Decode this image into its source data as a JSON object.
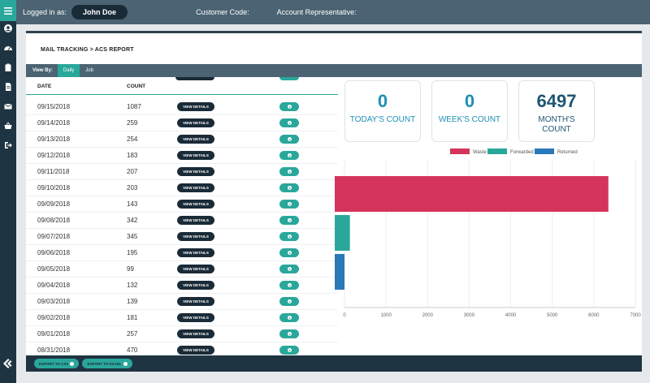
{
  "header": {
    "logged_in_label": "Logged in as:",
    "user_name": "John Doe",
    "customer_code_label": "Customer Code:",
    "account_rep_label": "Account Representative:"
  },
  "sidebar": {
    "icons": [
      "menu-icon",
      "user-icon",
      "dashboard-icon",
      "clipboard-icon",
      "document-icon",
      "mail-icon",
      "basket-icon",
      "logout-icon",
      "logo-icon"
    ]
  },
  "breadcrumb": "MAIL TRACKING > ACS REPORT",
  "view_by": {
    "label": "View By:",
    "tabs": [
      {
        "label": "Daily",
        "active": true
      },
      {
        "label": "Job",
        "active": false
      }
    ]
  },
  "table": {
    "headers": {
      "date": "DATE",
      "count": "COUNT"
    },
    "view_details_label": "VIEW DETAILS",
    "rows": [
      {
        "date": "09/15/2018",
        "count": "1087"
      },
      {
        "date": "09/14/2018",
        "count": "259"
      },
      {
        "date": "09/13/2018",
        "count": "254"
      },
      {
        "date": "09/12/2018",
        "count": "183"
      },
      {
        "date": "09/11/2018",
        "count": "207"
      },
      {
        "date": "09/10/2018",
        "count": "203"
      },
      {
        "date": "09/09/2018",
        "count": "143"
      },
      {
        "date": "09/08/2018",
        "count": "342"
      },
      {
        "date": "09/07/2018",
        "count": "345"
      },
      {
        "date": "09/06/2018",
        "count": "195"
      },
      {
        "date": "09/05/2018",
        "count": "99"
      },
      {
        "date": "09/04/2018",
        "count": "132"
      },
      {
        "date": "09/03/2018",
        "count": "139"
      },
      {
        "date": "09/02/2018",
        "count": "181"
      },
      {
        "date": "09/01/2018",
        "count": "257"
      },
      {
        "date": "08/31/2018",
        "count": "470"
      }
    ]
  },
  "cards": [
    {
      "value": "0",
      "label": "TODAY'S COUNT",
      "color": "#1f8fb5"
    },
    {
      "value": "0",
      "label": "WEEK'S COUNT",
      "color": "#1f8fb5"
    },
    {
      "value": "6497",
      "label": "MONTH'S COUNT",
      "color": "#1f5673"
    }
  ],
  "chart_data": {
    "type": "bar",
    "orientation": "horizontal",
    "series": [
      {
        "name": "Waste",
        "values": [
          6350
        ],
        "color": "#d5345a"
      },
      {
        "name": "Forwarded",
        "values": [
          130
        ],
        "color": "#2aa79b"
      },
      {
        "name": "Returned",
        "values": [
          0
        ],
        "color": "#2b78b8"
      }
    ],
    "xlim": [
      0,
      7000
    ],
    "xticks": [
      0,
      1000,
      2000,
      3000,
      4000,
      5000,
      6000,
      7000
    ],
    "grid": true,
    "legend": "top"
  },
  "footer": {
    "export_csv": "EXPORT TO CSV",
    "export_excel": "EXPORT TO EXCEL"
  },
  "colors": {
    "accent": "#2aa79b",
    "dark": "#1a2b38",
    "bar": "#4b6372"
  }
}
